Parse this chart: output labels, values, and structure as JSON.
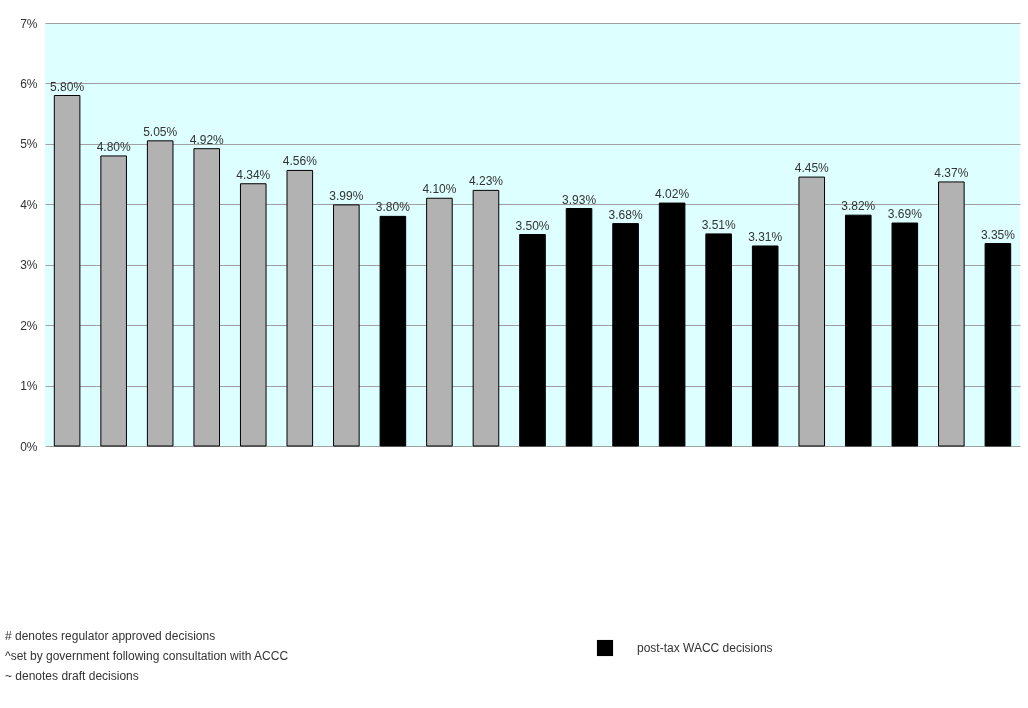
{
  "chart_data": {
    "type": "bar",
    "categories": [
      null,
      null,
      null,
      null,
      null,
      null,
      null,
      null,
      null,
      null,
      null,
      null,
      null,
      null,
      null,
      null,
      null,
      null,
      null,
      null,
      null
    ],
    "series": [
      {
        "name": "post-tax WACC decisions",
        "color": "#000000",
        "values": [
          5.8,
          4.8,
          5.05,
          4.92,
          4.34,
          4.56,
          3.99,
          3.8,
          4.1,
          4.23,
          3.5,
          3.93,
          3.68,
          4.02,
          3.51,
          3.31,
          4.45,
          3.82,
          3.69,
          4.37,
          3.35
        ],
        "colors": [
          "#b2b2b2",
          "#b2b2b2",
          "#b2b2b2",
          "#b2b2b2",
          "#b2b2b2",
          "#b2b2b2",
          "#b2b2b2",
          "#000000",
          "#b2b2b2",
          "#b2b2b2",
          "#000000",
          "#000000",
          "#000000",
          "#000000",
          "#000000",
          "#000000",
          "#b2b2b2",
          "#000000",
          "#000000",
          "#b2b2b2",
          "#000000"
        ],
        "value_labels": [
          "5.80%",
          "4.80%",
          "5.05%",
          "4.92%",
          "4.34%",
          "4.56%",
          "3.99%",
          "3.80%",
          "4.10%",
          "4.23%",
          "3.50%",
          "3.93%",
          "3.68%",
          "4.02%",
          "3.51%",
          "3.31%",
          "4.45%",
          "3.82%",
          "3.69%",
          "4.37%",
          "3.35%"
        ]
      }
    ],
    "ylim": [
      0,
      7
    ],
    "yticks": [
      {
        "value": 0,
        "label": "0%"
      },
      {
        "value": 1,
        "label": "1%"
      },
      {
        "value": 2,
        "label": "2%"
      },
      {
        "value": 3,
        "label": "3%"
      },
      {
        "value": 4,
        "label": "4%"
      },
      {
        "value": 5,
        "label": "5%"
      },
      {
        "value": 6,
        "label": "6%"
      },
      {
        "value": 7,
        "label": "7%"
      }
    ],
    "grid": "y",
    "legend": "bottom",
    "annotations": [
      "# denotes regulator approved decisions",
      "^set by government following consultation with ACCC",
      "~ denotes draft decisions"
    ]
  }
}
